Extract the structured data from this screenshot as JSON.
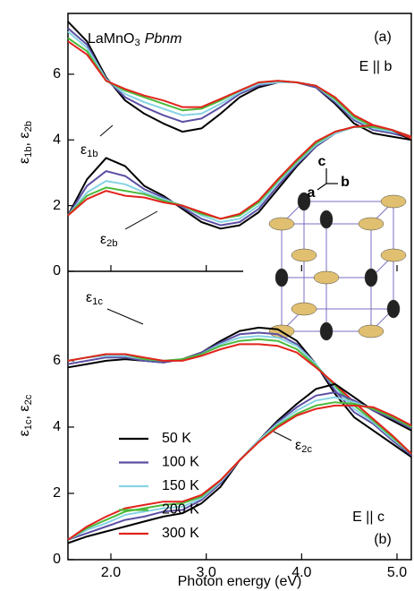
{
  "chart_data": [
    {
      "type": "line",
      "title": [
        "LaMnO",
        "3",
        "Pbnm"
      ],
      "panel_label": "(a)",
      "polarization": "E || b",
      "ylabel": [
        "ε",
        "1b",
        ", ε",
        "2b"
      ],
      "curve_labels": [
        [
          "ε",
          "1b"
        ],
        [
          "ε",
          "2b"
        ]
      ],
      "inset_axes": [
        "a",
        "b",
        "c"
      ],
      "xlim": [
        1.55,
        5.15
      ],
      "xticks": [
        2,
        3,
        4,
        5
      ],
      "ylim": [
        0,
        7.85
      ],
      "yticks": [
        0,
        2,
        4,
        6
      ],
      "x": [
        1.55,
        1.75,
        1.95,
        2.15,
        2.35,
        2.55,
        2.75,
        2.95,
        3.15,
        3.35,
        3.55,
        3.75,
        3.95,
        4.15,
        4.35,
        4.55,
        4.75,
        4.95,
        5.15
      ],
      "series": [
        {
          "color": "#000000",
          "values": [
            7.6,
            7.0,
            5.9,
            5.2,
            4.8,
            4.5,
            4.25,
            4.35,
            4.8,
            5.3,
            5.6,
            5.75,
            5.75,
            5.6,
            5.1,
            4.5,
            4.2,
            4.1,
            4.0
          ]
        },
        {
          "color": "#5b4fa3",
          "values": [
            7.4,
            6.9,
            5.85,
            5.3,
            5.0,
            4.75,
            4.55,
            4.65,
            5.0,
            5.4,
            5.65,
            5.75,
            5.75,
            5.6,
            5.15,
            4.6,
            4.3,
            4.2,
            4.05
          ]
        },
        {
          "color": "#86d3e3",
          "values": [
            7.3,
            6.8,
            5.85,
            5.4,
            5.15,
            4.95,
            4.75,
            4.8,
            5.1,
            5.45,
            5.7,
            5.75,
            5.75,
            5.65,
            5.2,
            4.65,
            4.35,
            4.25,
            4.1
          ]
        },
        {
          "color": "#4cba3b",
          "values": [
            7.1,
            6.7,
            5.8,
            5.5,
            5.3,
            5.1,
            4.9,
            4.95,
            5.2,
            5.5,
            5.75,
            5.8,
            5.75,
            5.65,
            5.25,
            4.7,
            4.4,
            4.3,
            4.1
          ]
        },
        {
          "color": "#e2231c",
          "values": [
            7.0,
            6.6,
            5.8,
            5.55,
            5.35,
            5.2,
            5.0,
            5.0,
            5.25,
            5.5,
            5.75,
            5.8,
            5.75,
            5.65,
            5.3,
            4.75,
            4.45,
            4.3,
            4.1
          ]
        },
        {
          "color": "#000000",
          "values": [
            1.7,
            2.8,
            3.45,
            3.2,
            2.6,
            2.3,
            1.9,
            1.5,
            1.3,
            1.4,
            1.8,
            2.5,
            3.2,
            3.8,
            4.2,
            4.4,
            4.4,
            4.3,
            4.0
          ]
        },
        {
          "color": "#5b4fa3",
          "values": [
            1.7,
            2.6,
            3.05,
            2.9,
            2.5,
            2.25,
            1.95,
            1.6,
            1.4,
            1.5,
            1.9,
            2.6,
            3.25,
            3.8,
            4.2,
            4.4,
            4.4,
            4.3,
            4.05
          ]
        },
        {
          "color": "#86d3e3",
          "values": [
            1.7,
            2.4,
            2.75,
            2.65,
            2.4,
            2.2,
            2.0,
            1.7,
            1.5,
            1.6,
            2.0,
            2.7,
            3.3,
            3.85,
            4.2,
            4.4,
            4.4,
            4.3,
            4.05
          ]
        },
        {
          "color": "#4cba3b",
          "values": [
            1.7,
            2.3,
            2.55,
            2.45,
            2.35,
            2.15,
            2.0,
            1.75,
            1.6,
            1.7,
            2.1,
            2.75,
            3.35,
            3.9,
            4.25,
            4.4,
            4.4,
            4.3,
            4.05
          ]
        },
        {
          "color": "#e2231c",
          "values": [
            1.7,
            2.2,
            2.45,
            2.3,
            2.25,
            2.1,
            2.0,
            1.8,
            1.6,
            1.75,
            2.15,
            2.8,
            3.4,
            3.95,
            4.25,
            4.4,
            4.45,
            4.3,
            4.05
          ]
        }
      ]
    },
    {
      "type": "line",
      "panel_label": "(b)",
      "polarization": "E || c",
      "ylabel": [
        "ε",
        "1c",
        ", ε",
        "2c"
      ],
      "curve_labels": [
        [
          "ε",
          "1c"
        ],
        [
          "ε",
          "2c"
        ]
      ],
      "xlabel": "Photon energy (eV)",
      "legend": "lower left",
      "xlim": [
        1.55,
        5.15
      ],
      "xticks": [
        {
          "value": 2,
          "label": "2.0"
        },
        {
          "value": 3,
          "label": "3.0"
        },
        {
          "value": 4,
          "label": "4.0"
        },
        {
          "value": 5,
          "label": "5.0"
        }
      ],
      "ylim": [
        0,
        8.7
      ],
      "yticks": [
        0,
        2,
        4,
        6
      ],
      "x": [
        1.55,
        1.75,
        1.95,
        2.15,
        2.35,
        2.55,
        2.75,
        2.95,
        3.15,
        3.35,
        3.55,
        3.75,
        3.95,
        4.15,
        4.35,
        4.55,
        4.75,
        4.95,
        5.15
      ],
      "series": [
        {
          "name": "50 K",
          "color": "#000000",
          "values": [
            5.8,
            5.9,
            6.0,
            6.05,
            6.0,
            5.95,
            6.05,
            6.25,
            6.6,
            6.9,
            7.0,
            6.95,
            6.6,
            5.9,
            5.0,
            4.3,
            3.9,
            3.5,
            3.1
          ]
        },
        {
          "name": "100 K",
          "color": "#5b4fa3",
          "values": [
            5.9,
            6.0,
            6.1,
            6.1,
            6.0,
            5.95,
            6.05,
            6.25,
            6.55,
            6.8,
            6.85,
            6.8,
            6.5,
            5.9,
            5.1,
            4.45,
            4.1,
            3.6,
            3.15
          ]
        },
        {
          "name": "150 K",
          "color": "#86d3e3",
          "values": [
            6.0,
            6.1,
            6.15,
            6.15,
            6.05,
            6.0,
            6.05,
            6.2,
            6.5,
            6.7,
            6.75,
            6.7,
            6.45,
            5.9,
            5.2,
            4.55,
            4.15,
            3.65,
            3.2
          ]
        },
        {
          "name": "200 K",
          "color": "#4cba3b",
          "values": [
            6.0,
            6.1,
            6.2,
            6.2,
            6.05,
            6.0,
            6.05,
            6.2,
            6.45,
            6.6,
            6.65,
            6.6,
            6.35,
            5.85,
            5.25,
            4.65,
            4.2,
            3.7,
            3.2
          ]
        },
        {
          "name": "300 K",
          "color": "#e2231c",
          "values": [
            6.0,
            6.1,
            6.2,
            6.2,
            6.1,
            6.0,
            6.0,
            6.15,
            6.35,
            6.5,
            6.5,
            6.45,
            6.25,
            5.8,
            5.3,
            4.75,
            4.25,
            3.75,
            3.2
          ]
        },
        {
          "color": "#000000",
          "values": [
            0.5,
            0.7,
            0.85,
            1.0,
            1.15,
            1.3,
            1.4,
            1.7,
            2.2,
            3.0,
            3.6,
            4.2,
            4.7,
            5.15,
            5.3,
            4.9,
            4.5,
            4.2,
            3.9
          ]
        },
        {
          "color": "#5b4fa3",
          "values": [
            0.6,
            0.8,
            1.0,
            1.2,
            1.3,
            1.45,
            1.5,
            1.8,
            2.3,
            3.0,
            3.6,
            4.15,
            4.6,
            4.95,
            5.05,
            4.8,
            4.5,
            4.25,
            3.95
          ]
        },
        {
          "color": "#86d3e3",
          "values": [
            0.6,
            0.9,
            1.1,
            1.35,
            1.45,
            1.55,
            1.6,
            1.85,
            2.35,
            3.0,
            3.6,
            4.1,
            4.5,
            4.8,
            4.9,
            4.75,
            4.55,
            4.3,
            4.0
          ]
        },
        {
          "color": "#4cba3b",
          "values": [
            0.6,
            0.95,
            1.2,
            1.45,
            1.55,
            1.65,
            1.7,
            1.9,
            2.4,
            3.0,
            3.55,
            4.05,
            4.4,
            4.65,
            4.75,
            4.7,
            4.55,
            4.3,
            4.0
          ]
        },
        {
          "color": "#e2231c",
          "values": [
            0.6,
            1.0,
            1.3,
            1.55,
            1.65,
            1.75,
            1.75,
            1.95,
            2.4,
            3.0,
            3.55,
            4.0,
            4.35,
            4.55,
            4.65,
            4.65,
            4.6,
            4.35,
            4.05
          ]
        }
      ]
    }
  ]
}
